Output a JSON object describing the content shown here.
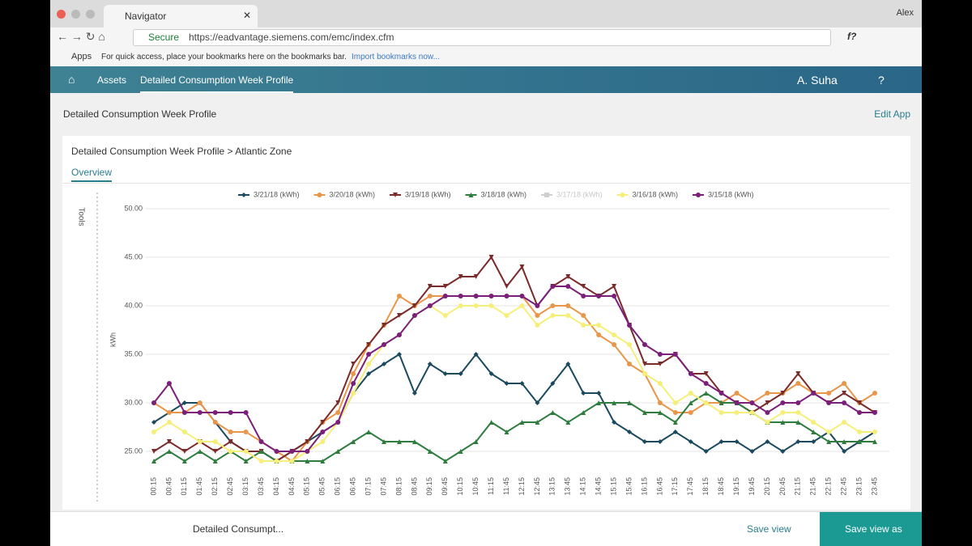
{
  "browser": {
    "tab_title": "Navigator",
    "profile": "Alex",
    "secure_label": "Secure",
    "url": "https://eadvantage.siemens.com/emc/index.cfm",
    "extension": "f?",
    "bookmarks": {
      "apps": "Apps",
      "hint": "For quick access, place your bookmarks here on the bookmarks bar.",
      "import": "Import bookmarks now..."
    }
  },
  "app": {
    "nav": [
      "Assets",
      "Detailed Consumption Week Profile"
    ],
    "user": "A. Suha",
    "help": "?",
    "page_title": "Detailed Consumption Week Profile",
    "edit_app": "Edit App",
    "card_title": "Detailed Consumption Week Profile > Atlantic Zone",
    "tab": "Overview",
    "tools": "Tools",
    "bottom": {
      "view_name": "Detailed Consumpt...",
      "save_view": "Save view",
      "save_view_as": "Save view as"
    }
  },
  "chart_data": {
    "type": "line",
    "y_label": "kWh",
    "categories": [
      "00:15",
      "00:45",
      "01:15",
      "01:45",
      "02:15",
      "02:45",
      "03:15",
      "03:45",
      "04:15",
      "04:45",
      "05:15",
      "05:45",
      "06:15",
      "06:45",
      "07:15",
      "07:45",
      "08:15",
      "08:45",
      "09:15",
      "09:45",
      "10:15",
      "10:45",
      "11:15",
      "11:45",
      "12:15",
      "12:45",
      "13:15",
      "13:45",
      "14:15",
      "14:45",
      "15:15",
      "15:45",
      "16:15",
      "16:45",
      "17:15",
      "17:45",
      "18:15",
      "18:45",
      "19:15",
      "19:45",
      "20:15",
      "20:45",
      "21:15",
      "21:45",
      "22:15",
      "22:45",
      "23:15",
      "23:45"
    ],
    "ylim": [
      23,
      50
    ],
    "yticks": [
      {
        "value": 25,
        "label": "25.00"
      },
      {
        "value": 30,
        "label": "30.00"
      },
      {
        "value": 35,
        "label": "35.00"
      },
      {
        "value": 40,
        "label": "40.00"
      },
      {
        "value": 45,
        "label": "45.00"
      },
      {
        "value": 50,
        "label": "50.00"
      }
    ],
    "grid": true,
    "legend": "top",
    "series": [
      {
        "name": "3/21/18 (kWh)",
        "color": "#1b4a5e",
        "marker": "diamond",
        "values": [
          28,
          29,
          30,
          30,
          28,
          26,
          25,
          25,
          24,
          25,
          26,
          27,
          28,
          31,
          33,
          34,
          35,
          31,
          34,
          33,
          33,
          35,
          33,
          32,
          32,
          30,
          32,
          34,
          31,
          31,
          28,
          27,
          26,
          26,
          27,
          26,
          25,
          26,
          26,
          25,
          26,
          25,
          26,
          26,
          27,
          25,
          26,
          27
        ]
      },
      {
        "name": "3/20/18 (kWh)",
        "color": "#e8964a",
        "marker": "circle",
        "values": [
          30,
          29,
          29,
          30,
          28,
          27,
          27,
          26,
          25,
          24,
          26,
          28,
          29,
          33,
          36,
          38,
          41,
          40,
          41,
          41,
          41,
          41,
          41,
          41,
          41,
          39,
          40,
          40,
          39,
          37,
          36,
          34,
          33,
          30,
          29,
          29,
          30,
          30,
          31,
          30,
          31,
          31,
          32,
          31,
          31,
          32,
          30,
          31
        ]
      },
      {
        "name": "3/19/18 (kWh)",
        "color": "#7b2a2a",
        "marker": "triangle-down",
        "values": [
          25,
          26,
          25,
          26,
          25,
          26,
          25,
          25,
          24,
          25,
          26,
          28,
          30,
          34,
          36,
          38,
          39,
          40,
          42,
          42,
          43,
          43,
          45,
          42,
          44,
          40,
          42,
          43,
          42,
          41,
          42,
          38,
          34,
          34,
          35,
          33,
          33,
          31,
          30,
          29,
          30,
          31,
          33,
          31,
          30,
          31,
          30,
          29
        ]
      },
      {
        "name": "3/18/18 (kWh)",
        "color": "#2e7d3f",
        "marker": "triangle-up",
        "values": [
          24,
          25,
          24,
          25,
          24,
          25,
          24,
          25,
          24,
          24,
          24,
          24,
          25,
          26,
          27,
          26,
          26,
          26,
          25,
          24,
          25,
          26,
          28,
          27,
          28,
          28,
          29,
          28,
          29,
          30,
          30,
          30,
          29,
          29,
          28,
          30,
          31,
          30,
          30,
          29,
          28,
          28,
          28,
          27,
          26,
          26,
          26,
          26
        ]
      },
      {
        "name": "3/17/18 (kWh)",
        "color": "#cfcfcf",
        "marker": "square",
        "visible": false
      },
      {
        "name": "3/16/18 (kWh)",
        "color": "#f5ef7a",
        "marker": "circle",
        "values": [
          27,
          28,
          27,
          26,
          26,
          25,
          25,
          24,
          24,
          24,
          25,
          26,
          28,
          31,
          34,
          36,
          37,
          39,
          40,
          39,
          40,
          40,
          40,
          39,
          40,
          38,
          39,
          39,
          38,
          38,
          37,
          36,
          33,
          32,
          30,
          31,
          30,
          29,
          29,
          29,
          28,
          29,
          29,
          28,
          27,
          28,
          27,
          27
        ]
      },
      {
        "name": "3/15/18 (kWh)",
        "color": "#7b1f7b",
        "marker": "circle",
        "values": [
          30,
          32,
          29,
          29,
          29,
          29,
          29,
          26,
          25,
          25,
          25,
          27,
          28,
          32,
          35,
          36,
          37,
          39,
          40,
          41,
          41,
          41,
          41,
          41,
          41,
          40,
          42,
          42,
          41,
          41,
          41,
          38,
          36,
          35,
          35,
          33,
          32,
          31,
          30,
          30,
          29,
          30,
          30,
          31,
          30,
          30,
          29,
          29
        ]
      }
    ]
  }
}
